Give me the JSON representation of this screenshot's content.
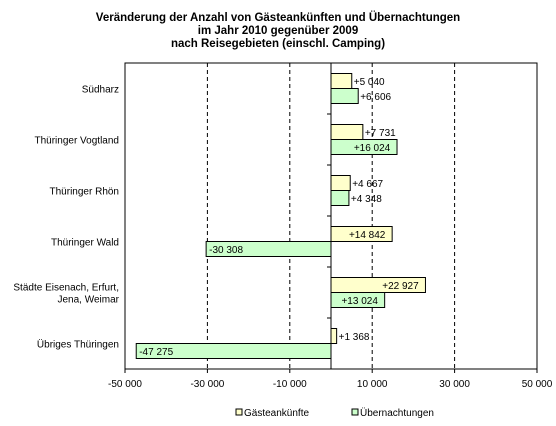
{
  "chart_data": {
    "type": "bar",
    "orientation": "horizontal",
    "title": [
      "Veränderung  der Anzahl von Gästeankünften  und Übernachtungen",
      "im Jahr 2010 gegenüber 2009",
      "nach Reisegebieten  (einschl. Camping)"
    ],
    "categories": [
      [
        "Südharz"
      ],
      [
        "Thüringer Vogtland"
      ],
      [
        "Thüringer Rhön"
      ],
      [
        "Thüringer Wald"
      ],
      [
        "Städte Eisenach, Erfurt,",
        "Jena, Weimar"
      ],
      [
        "Übriges Thüringen"
      ]
    ],
    "series": [
      {
        "name": "Gästeankünfte",
        "color": "#ffffcc",
        "values": [
          5040,
          7731,
          4667,
          14842,
          22927,
          1368
        ],
        "labels": [
          "+5 040",
          "+7 731",
          "+4 667",
          "+14 842",
          "+22 927",
          "+1 368"
        ]
      },
      {
        "name": "Übernachtungen",
        "color": "#ccffcc",
        "values": [
          6606,
          16024,
          4348,
          -30308,
          13024,
          -47275
        ],
        "labels": [
          "+6 606",
          "+16 024",
          "+4 348",
          "-30 308",
          "+13 024",
          "-47 275"
        ]
      }
    ],
    "xlim": [
      -50000,
      50000
    ],
    "xticks": [
      -50000,
      -30000,
      -10000,
      10000,
      30000,
      50000
    ],
    "xtick_labels": [
      "-50 000",
      "-30 000",
      "-10 000",
      "10 000",
      "30 000",
      "50 000"
    ],
    "gridlines": "vertical dashed",
    "legend_position": "bottom"
  }
}
